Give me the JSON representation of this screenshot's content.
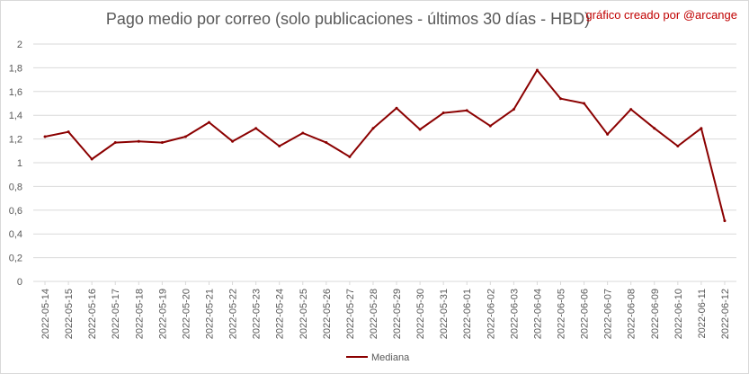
{
  "title": "Pago medio por correo (solo publicaciones - últimos 30 días - HBD)",
  "credit": "gráfico creado por @arcange",
  "colors": {
    "series": "#8b0000",
    "grid": "#d9d9d9",
    "text": "#595959",
    "credit": "#c00000"
  },
  "chart_data": {
    "type": "line",
    "title": "Pago medio por correo (solo publicaciones - últimos 30 días - HBD)",
    "xlabel": "",
    "ylabel": "",
    "ylim": [
      0,
      2
    ],
    "y_ticks": [
      "0",
      "0,2",
      "0,4",
      "0,6",
      "0,8",
      "1",
      "1,2",
      "1,4",
      "1,6",
      "1,8",
      "2"
    ],
    "grid": "horizontal",
    "legend": "bottom",
    "categories": [
      "2022-05-14",
      "2022-05-15",
      "2022-05-16",
      "2022-05-17",
      "2022-05-18",
      "2022-05-19",
      "2022-05-20",
      "2022-05-21",
      "2022-05-22",
      "2022-05-23",
      "2022-05-24",
      "2022-05-25",
      "2022-05-26",
      "2022-05-27",
      "2022-05-28",
      "2022-05-29",
      "2022-05-30",
      "2022-05-31",
      "2022-06-01",
      "2022-06-02",
      "2022-06-03",
      "2022-06-04",
      "2022-06-05",
      "2022-06-06",
      "2022-06-07",
      "2022-06-08",
      "2022-06-09",
      "2022-06-10",
      "2022-06-11",
      "2022-06-12"
    ],
    "series": [
      {
        "name": "Mediana",
        "values": [
          1.22,
          1.26,
          1.03,
          1.17,
          1.18,
          1.17,
          1.22,
          1.34,
          1.18,
          1.29,
          1.14,
          1.25,
          1.17,
          1.05,
          1.29,
          1.46,
          1.28,
          1.42,
          1.44,
          1.31,
          1.45,
          1.78,
          1.54,
          1.5,
          1.24,
          1.45,
          1.29,
          1.14,
          1.29,
          0.51
        ]
      }
    ]
  }
}
